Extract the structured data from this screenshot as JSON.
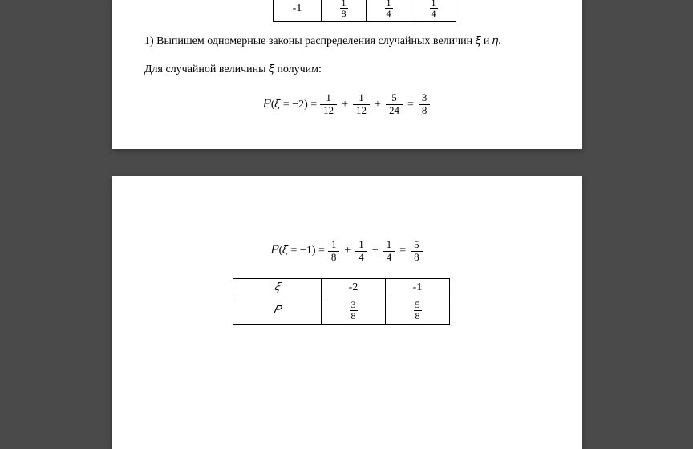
{
  "colors": {
    "page_bg": "#ffffff",
    "body_bg": "#4a4a4a",
    "text": "#000000",
    "border": "#000000"
  },
  "typography": {
    "font_family": "Times New Roman",
    "body_fontsize": 14,
    "frac_fontsize": 12
  },
  "top_table": {
    "label": "-1",
    "cells": [
      {
        "num": "1",
        "den": "8"
      },
      {
        "num": "1",
        "den": "4"
      },
      {
        "num": "1",
        "den": "4"
      }
    ]
  },
  "paragraph1": "1) Выпишем одномерные законы распределения случайных величин 𝜉 и 𝜂.",
  "paragraph2": "Для случайной величины 𝜉 получим:",
  "equation1": {
    "lhs": "𝑃(𝜉 = −2) =",
    "terms": [
      {
        "num": "1",
        "den": "12"
      },
      {
        "num": "1",
        "den": "12"
      },
      {
        "num": "5",
        "den": "24"
      }
    ],
    "result": {
      "num": "3",
      "den": "8"
    }
  },
  "equation2": {
    "lhs": "𝑃(𝜉 = −1) =",
    "terms": [
      {
        "num": "1",
        "den": "8"
      },
      {
        "num": "1",
        "den": "4"
      },
      {
        "num": "1",
        "den": "4"
      }
    ],
    "result": {
      "num": "5",
      "den": "8"
    }
  },
  "result_table": {
    "header_label": "𝜉",
    "columns": [
      "-2",
      "-1"
    ],
    "row_label": "𝑃",
    "values": [
      {
        "num": "3",
        "den": "8"
      },
      {
        "num": "5",
        "den": "8"
      }
    ]
  }
}
